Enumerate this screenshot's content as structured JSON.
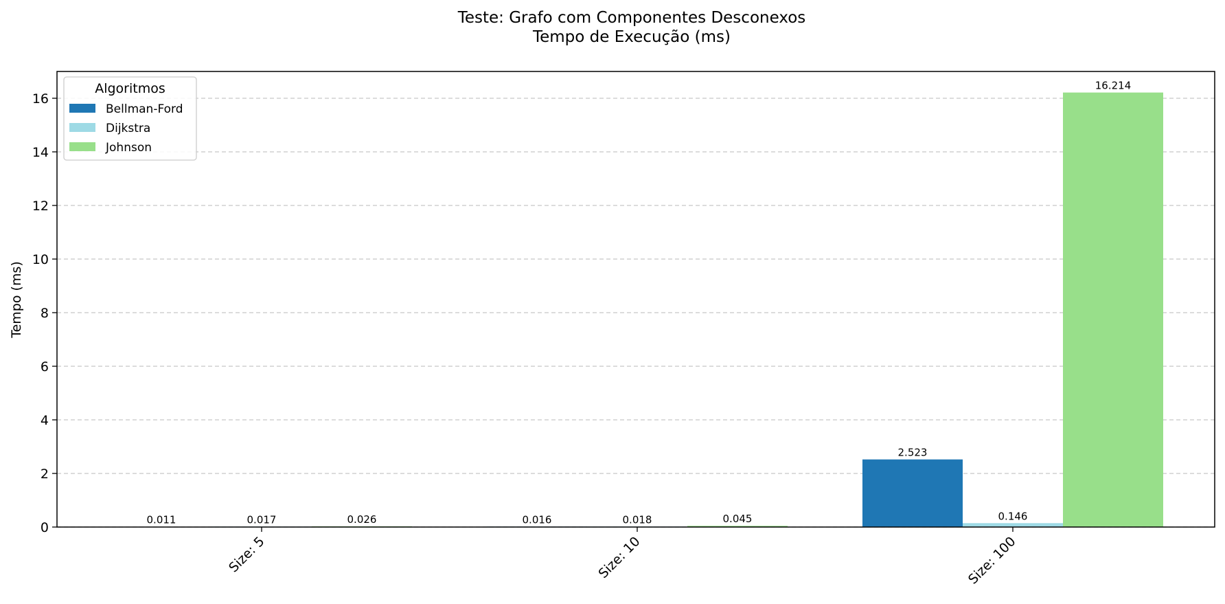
{
  "chart_data": {
    "type": "bar",
    "title": [
      "Teste: Grafo com Componentes Desconexos",
      "Tempo de Execução (ms)"
    ],
    "xlabel": "",
    "ylabel": "Tempo (ms)",
    "categories": [
      "Size: 5",
      "Size: 10",
      "Size: 100"
    ],
    "series": [
      {
        "name": "Bellman-Ford",
        "color": "#1f77b4",
        "values": [
          0.011,
          0.016,
          2.523
        ],
        "labels": [
          "0.011",
          "0.016",
          "2.523"
        ]
      },
      {
        "name": "Dijkstra",
        "color": "#9edae5",
        "values": [
          0.017,
          0.018,
          0.146
        ],
        "labels": [
          "0.017",
          "0.018",
          "0.146"
        ]
      },
      {
        "name": "Johnson",
        "color": "#98df8a",
        "values": [
          0.026,
          0.045,
          16.214
        ],
        "labels": [
          "0.026",
          "0.045",
          "16.214"
        ]
      }
    ],
    "ylim": [
      0,
      17
    ],
    "yticks": [
      0,
      2,
      4,
      6,
      8,
      10,
      12,
      14,
      16
    ],
    "grid": "y-dashed",
    "legend": {
      "title": "Algoritmos",
      "placement": "top-left"
    }
  }
}
